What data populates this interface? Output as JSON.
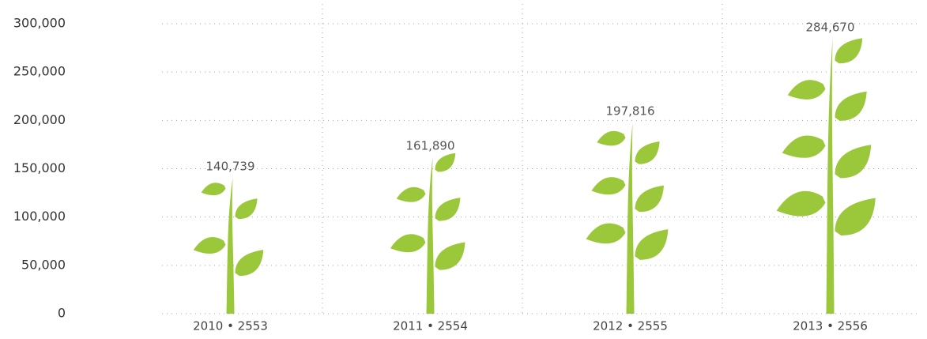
{
  "chart_data": {
    "type": "bar",
    "categories": [
      "2010 • 2553",
      "2011 • 2554",
      "2012 • 2555",
      "2013 • 2556"
    ],
    "values": [
      140739,
      161890,
      197816,
      284670
    ],
    "value_labels": [
      "140,739",
      "161,890",
      "197,816",
      "284,670"
    ],
    "color": "#9bc83a",
    "ylim": [
      0,
      300000
    ],
    "yticks": [
      0,
      {
        "value": 50000,
        "label": "50,000"
      },
      {
        "value": 100000,
        "label": "100,000"
      },
      {
        "value": 150000,
        "label": "150,000"
      },
      {
        "value": 200000,
        "label": "200,000"
      },
      {
        "value": 250000,
        "label": "250,000"
      },
      {
        "value": 300000,
        "label": "300,000"
      }
    ],
    "grid": true
  }
}
